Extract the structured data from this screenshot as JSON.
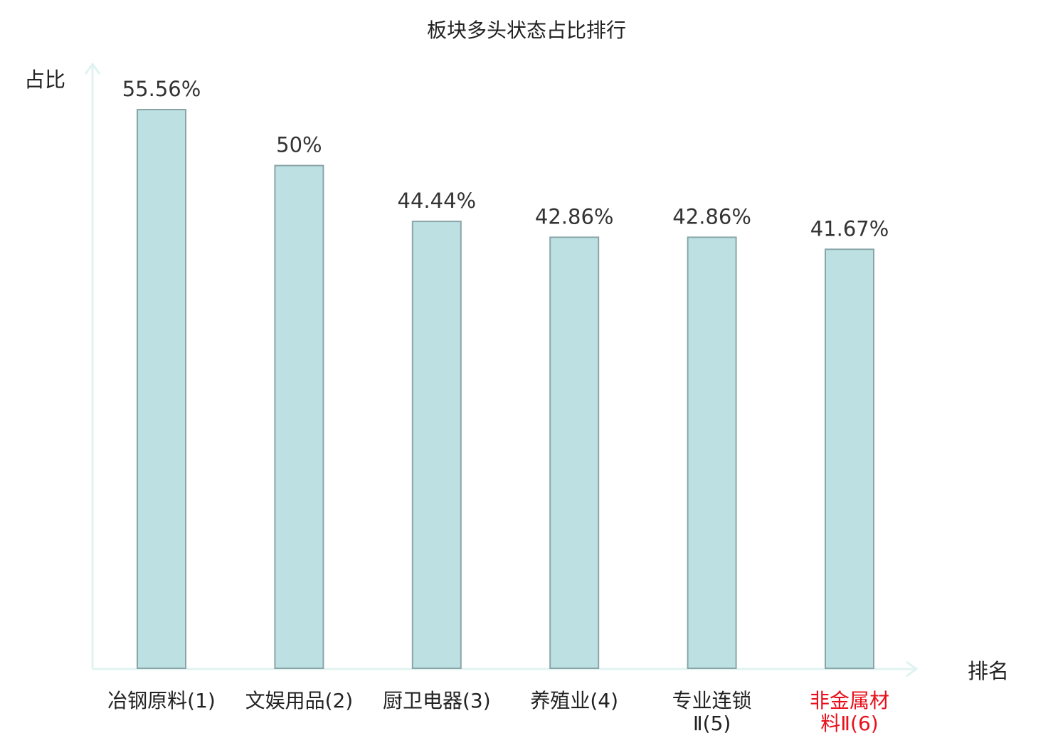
{
  "chart_data": {
    "type": "bar",
    "title": "板块多头状态占比排行",
    "xlabel": "排名",
    "ylabel": "占比",
    "categories": [
      [
        "冶钢原料(1)"
      ],
      [
        "文娱用品(2)"
      ],
      [
        "厨卫电器(3)"
      ],
      [
        "养殖业(4)"
      ],
      [
        "专业连锁",
        "Ⅱ(5)"
      ],
      [
        "非金属材",
        "料Ⅱ(6)"
      ]
    ],
    "values": [
      55.56,
      50,
      44.44,
      42.86,
      42.86,
      41.67
    ],
    "value_labels": [
      "55.56%",
      "50%",
      "44.44%",
      "42.86%",
      "42.86%",
      "41.67%"
    ],
    "highlight_index": 5,
    "ylim": [
      0,
      56
    ],
    "grid": false,
    "colors": {
      "bar_fill": "#bde1e3",
      "bar_stroke": "#8aa5a8",
      "axis": "#e0f3f0",
      "text": "#333333",
      "highlight_text": "#e8101a"
    }
  }
}
